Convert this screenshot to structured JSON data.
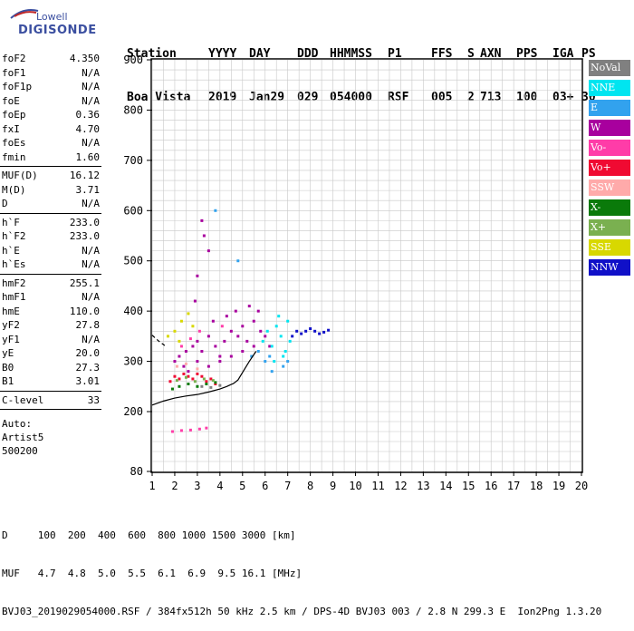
{
  "logo": {
    "line1": "Lowell",
    "line2": "DIGISONDE"
  },
  "header": {
    "labels": [
      "Station",
      "YYYY",
      "DAY",
      "DDD",
      "HHMMSS",
      "P1",
      "FFS",
      "S",
      "AXN",
      "PPS",
      "IGA",
      "PS"
    ],
    "values": [
      "Boa Vista",
      "2019",
      "Jan29",
      "029",
      "054000",
      "RSF",
      "005",
      "2",
      "713",
      "100",
      "03+",
      "30"
    ]
  },
  "params": {
    "group1": [
      {
        "label": "foF2",
        "value": "4.350"
      },
      {
        "label": "foF1",
        "value": "N/A"
      },
      {
        "label": "foF1p",
        "value": "N/A"
      },
      {
        "label": "foE",
        "value": "N/A"
      },
      {
        "label": "foEp",
        "value": "0.36"
      },
      {
        "label": "fxI",
        "value": "4.70"
      },
      {
        "label": "foEs",
        "value": "N/A"
      },
      {
        "label": "fmin",
        "value": "1.60"
      }
    ],
    "group2": [
      {
        "label": "MUF(D)",
        "value": "16.12"
      },
      {
        "label": "M(D)",
        "value": "3.71"
      },
      {
        "label": "D",
        "value": "N/A"
      }
    ],
    "group3": [
      {
        "label": "h`F",
        "value": "233.0"
      },
      {
        "label": "h`F2",
        "value": "233.0"
      },
      {
        "label": "h`E",
        "value": "N/A"
      },
      {
        "label": "h`Es",
        "value": "N/A"
      }
    ],
    "group4": [
      {
        "label": "hmF2",
        "value": "255.1"
      },
      {
        "label": "hmF1",
        "value": "N/A"
      },
      {
        "label": "hmE",
        "value": "110.0"
      },
      {
        "label": "yF2",
        "value": "27.8"
      },
      {
        "label": "yF1",
        "value": "N/A"
      },
      {
        "label": "yE",
        "value": "20.0"
      },
      {
        "label": "B0",
        "value": "27.3"
      },
      {
        "label": "B1",
        "value": "3.01"
      }
    ],
    "group5": [
      {
        "label": "C-level",
        "value": "33"
      }
    ],
    "notes": [
      "Auto:",
      "Artist5",
      "500200"
    ]
  },
  "legend": [
    {
      "label": "NoVal",
      "color": "#808080"
    },
    {
      "label": "NNE",
      "color": "#00e5f0"
    },
    {
      "label": "E",
      "color": "#32a2ee"
    },
    {
      "label": "W",
      "color": "#a8009e"
    },
    {
      "label": "Vo-",
      "color": "#ff3ca8"
    },
    {
      "label": "Vo+",
      "color": "#f00a32"
    },
    {
      "label": "SSW",
      "color": "#ffaaaa"
    },
    {
      "label": "X-",
      "color": "#0a7a0a"
    },
    {
      "label": "X+",
      "color": "#7ab050"
    },
    {
      "label": "SSE",
      "color": "#d8d800"
    },
    {
      "label": "NNW",
      "color": "#1010c8"
    }
  ],
  "footer": {
    "line1": "D     100  200  400  600  800 1000 1500 3000 [km]",
    "line2": "MUF   4.7  4.8  5.0  5.5  6.1  6.9  9.5 16.1 [MHz]",
    "line3": "BVJ03_2019029054000.RSF / 384fx512h 50 kHz 2.5 km / DPS-4D BVJ03 003 / 2.8 N 299.3 E  Ion2Png 1.3.20"
  },
  "chart_data": {
    "type": "scatter",
    "title": "",
    "xlabel": "",
    "ylabel": "",
    "xlim": [
      1,
      20
    ],
    "ylim": [
      80,
      900
    ],
    "xticks": [
      1,
      2,
      3,
      4,
      5,
      6,
      7,
      8,
      9,
      10,
      11,
      12,
      13,
      14,
      15,
      16,
      17,
      18,
      19,
      20
    ],
    "yticks": [
      80,
      200,
      300,
      400,
      500,
      600,
      700,
      800,
      900
    ],
    "grid": true,
    "legend_position": "right",
    "series": [
      {
        "name": "W",
        "color": "#a8009e",
        "points": [
          [
            2.0,
            300
          ],
          [
            2.2,
            310
          ],
          [
            2.5,
            320
          ],
          [
            2.8,
            330
          ],
          [
            3.0,
            340
          ],
          [
            3.2,
            320
          ],
          [
            3.5,
            350
          ],
          [
            3.8,
            330
          ],
          [
            4.0,
            310
          ],
          [
            4.2,
            340
          ],
          [
            4.5,
            360
          ],
          [
            4.8,
            350
          ],
          [
            5.0,
            370
          ],
          [
            5.2,
            340
          ],
          [
            5.5,
            380
          ],
          [
            5.8,
            360
          ],
          [
            6.0,
            350
          ],
          [
            3.0,
            300
          ],
          [
            3.5,
            290
          ],
          [
            4.0,
            300
          ],
          [
            4.5,
            310
          ],
          [
            5.0,
            320
          ],
          [
            5.5,
            330
          ],
          [
            2.4,
            290
          ],
          [
            2.6,
            280
          ],
          [
            3.3,
            550
          ],
          [
            3.5,
            520
          ],
          [
            3.2,
            580
          ],
          [
            3.0,
            470
          ],
          [
            2.9,
            420
          ],
          [
            3.7,
            380
          ],
          [
            4.3,
            390
          ],
          [
            4.7,
            400
          ],
          [
            5.3,
            410
          ],
          [
            5.7,
            400
          ],
          [
            6.2,
            330
          ]
        ]
      },
      {
        "name": "NNE",
        "color": "#00e5f0",
        "points": [
          [
            5.9,
            340
          ],
          [
            6.1,
            360
          ],
          [
            6.3,
            330
          ],
          [
            6.5,
            370
          ],
          [
            6.7,
            350
          ],
          [
            6.9,
            320
          ],
          [
            7.0,
            380
          ],
          [
            6.6,
            390
          ],
          [
            6.8,
            310
          ],
          [
            7.1,
            340
          ],
          [
            6.4,
            300
          ]
        ]
      },
      {
        "name": "E",
        "color": "#32a2ee",
        "points": [
          [
            5.7,
            320
          ],
          [
            6.0,
            300
          ],
          [
            6.2,
            310
          ],
          [
            6.8,
            290
          ],
          [
            5.4,
            310
          ],
          [
            3.8,
            600
          ],
          [
            4.8,
            500
          ],
          [
            6.3,
            280
          ],
          [
            7.0,
            300
          ]
        ]
      },
      {
        "name": "NNW",
        "color": "#1010c8",
        "points": [
          [
            7.4,
            360
          ],
          [
            7.6,
            355
          ],
          [
            7.8,
            360
          ],
          [
            8.0,
            365
          ],
          [
            8.2,
            360
          ],
          [
            8.4,
            355
          ],
          [
            8.6,
            358
          ],
          [
            8.8,
            362
          ],
          [
            7.2,
            350
          ]
        ]
      },
      {
        "name": "Vo+",
        "color": "#f00a32",
        "points": [
          [
            1.8,
            260
          ],
          [
            2.0,
            270
          ],
          [
            2.2,
            265
          ],
          [
            2.4,
            275
          ],
          [
            2.6,
            270
          ],
          [
            2.8,
            265
          ],
          [
            3.0,
            275
          ],
          [
            3.2,
            270
          ],
          [
            3.4,
            260
          ],
          [
            3.6,
            265
          ],
          [
            3.8,
            255
          ]
        ]
      },
      {
        "name": "Vo-",
        "color": "#ff3ca8",
        "points": [
          [
            2.3,
            330
          ],
          [
            2.7,
            345
          ],
          [
            3.1,
            360
          ],
          [
            4.1,
            370
          ],
          [
            1.9,
            160
          ],
          [
            2.3,
            162
          ],
          [
            2.7,
            163
          ],
          [
            3.1,
            165
          ],
          [
            3.4,
            167
          ]
        ]
      },
      {
        "name": "X-",
        "color": "#0a7a0a",
        "points": [
          [
            1.9,
            245
          ],
          [
            2.2,
            250
          ],
          [
            2.6,
            255
          ],
          [
            3.0,
            250
          ],
          [
            3.4,
            255
          ],
          [
            3.8,
            258
          ]
        ]
      },
      {
        "name": "X+",
        "color": "#7ab050",
        "points": [
          [
            2.1,
            262
          ],
          [
            2.5,
            268
          ],
          [
            2.9,
            260
          ],
          [
            3.3,
            265
          ],
          [
            3.7,
            262
          ]
        ]
      },
      {
        "name": "SSE",
        "color": "#d8d800",
        "points": [
          [
            1.7,
            350
          ],
          [
            2.0,
            360
          ],
          [
            2.3,
            380
          ],
          [
            2.6,
            395
          ],
          [
            2.2,
            340
          ],
          [
            2.8,
            370
          ]
        ]
      },
      {
        "name": "SSW",
        "color": "#ffaaaa",
        "points": [
          [
            2.1,
            290
          ],
          [
            2.5,
            295
          ],
          [
            3.0,
            285
          ]
        ]
      },
      {
        "name": "NoVal",
        "color": "#808080",
        "points": [
          [
            3.2,
            250
          ],
          [
            3.6,
            248
          ],
          [
            4.0,
            252
          ]
        ]
      }
    ],
    "profile_curve": {
      "color": "#000000",
      "points": [
        [
          1.0,
          213
        ],
        [
          1.5,
          221
        ],
        [
          2.0,
          227
        ],
        [
          2.5,
          231
        ],
        [
          3.0,
          234
        ],
        [
          3.5,
          239
        ],
        [
          4.0,
          245
        ],
        [
          4.3,
          250
        ],
        [
          4.6,
          256
        ],
        [
          4.8,
          263
        ],
        [
          5.0,
          278
        ],
        [
          5.3,
          300
        ],
        [
          5.6,
          320
        ]
      ]
    },
    "dashed_curve": {
      "color": "#000000",
      "points": [
        [
          1.0,
          352
        ],
        [
          1.3,
          340
        ],
        [
          1.6,
          330
        ]
      ]
    }
  }
}
